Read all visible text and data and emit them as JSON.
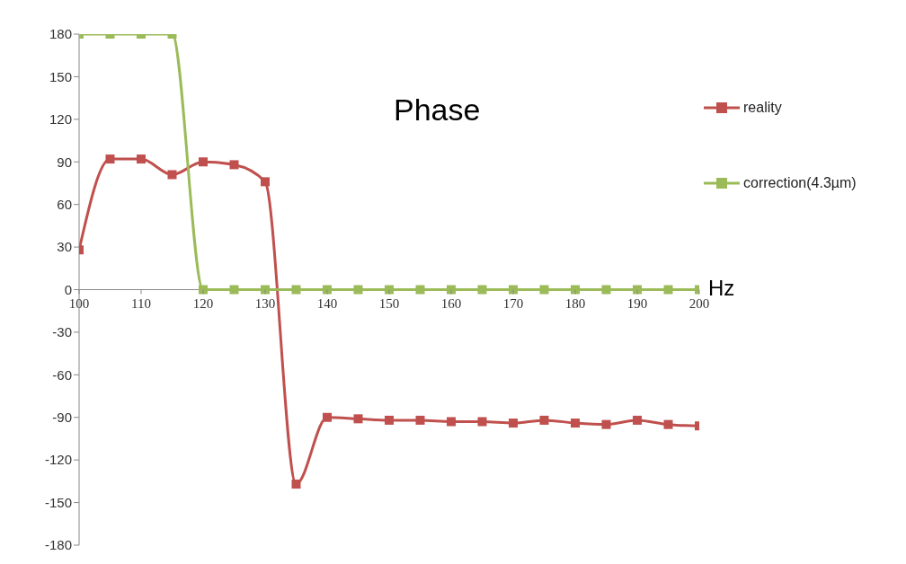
{
  "chart_data": {
    "type": "line",
    "title": "Phase",
    "xlabel": "Hz",
    "x": [
      100,
      105,
      110,
      115,
      120,
      125,
      130,
      135,
      140,
      145,
      150,
      155,
      160,
      165,
      170,
      175,
      180,
      185,
      190,
      195,
      200
    ],
    "series": [
      {
        "name": "reality",
        "color": "#c0504d",
        "values": [
          28,
          92,
          92,
          81,
          90,
          88,
          76,
          -137,
          -90,
          -91,
          -92,
          -92,
          -93,
          -93,
          -94,
          -92,
          -94,
          -95,
          -92,
          -95,
          -96
        ]
      },
      {
        "name": "correction(4.3µm)",
        "color": "#9bbb59",
        "values": [
          180,
          180,
          180,
          180,
          0,
          0,
          0,
          0,
          0,
          0,
          0,
          0,
          0,
          0,
          0,
          0,
          0,
          0,
          0,
          0,
          0
        ]
      }
    ],
    "xlim": [
      100,
      200
    ],
    "xticks": [
      100,
      110,
      120,
      130,
      140,
      150,
      160,
      170,
      180,
      190,
      200
    ],
    "ylim": [
      -180,
      180
    ],
    "yticks": [
      -180,
      -150,
      -120,
      -90,
      -60,
      -30,
      0,
      30,
      60,
      90,
      120,
      150,
      180
    ],
    "legend": "top right",
    "marker": "square",
    "line_style": "solid"
  }
}
